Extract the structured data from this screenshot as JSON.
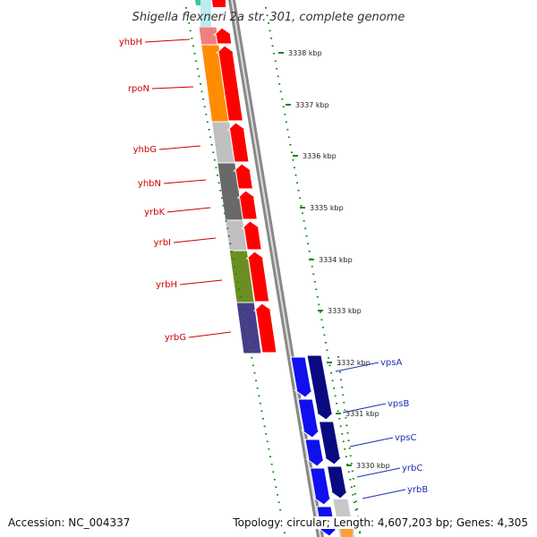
{
  "title": "Shigella flexneri 2a str. 301, complete genome",
  "accession_text": "Accession: NC_004337",
  "summary_text": "Topology: circular; Length: 4,607,203 bp; Genes: 4,305",
  "ticks": [
    "3338 kbp",
    "3337 kbp",
    "3336 kbp",
    "3335 kbp",
    "3334 kbp",
    "3333 kbp",
    "3332 kbp",
    "3331 kbp",
    "3330 kbp"
  ],
  "genes_left": [
    "yhbH",
    "rpoN",
    "yhbG",
    "yhbN",
    "yrbK",
    "yrbI",
    "yrbH",
    "yrbG"
  ],
  "genes_right": [
    "vpsA",
    "vpsB",
    "vpsC",
    "yrbC",
    "yrbB"
  ],
  "colors": {
    "forward_strand": "#ff0000",
    "reverse_strand": "#1010ee",
    "reverse_strand_dark": "#0a0a80",
    "backbone": "#888888",
    "ticks": "#118811",
    "left_labels": "#cc0000",
    "right_labels": "#1f2fb0"
  }
}
